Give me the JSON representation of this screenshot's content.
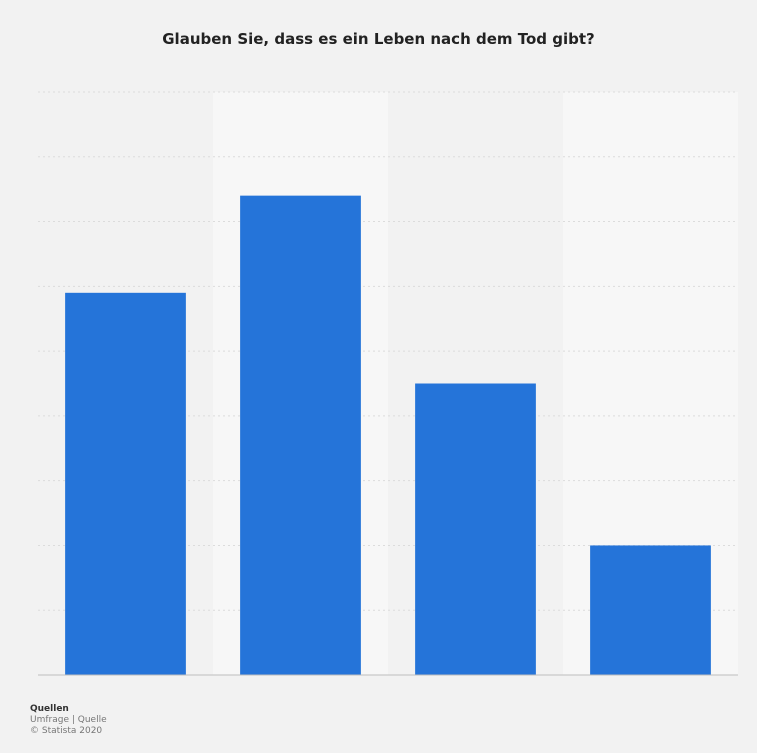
{
  "chart_data": {
    "type": "bar",
    "title": "Glauben Sie, dass es ein Leben nach dem Tod gibt?",
    "categories": [
      "",
      "",
      "",
      ""
    ],
    "values": [
      59,
      74,
      45,
      20
    ],
    "ylim": [
      0,
      90
    ],
    "grid": true,
    "bar_color": "#2574d9"
  },
  "source": {
    "label": "Quellen",
    "lines": [
      "Umfrage | Quelle",
      "© Statista 2020"
    ]
  }
}
